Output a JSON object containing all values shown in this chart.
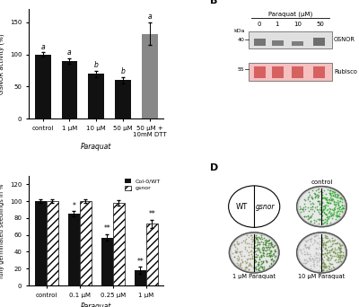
{
  "panel_A": {
    "categories": [
      "control",
      "1 μM",
      "10 μM",
      "50 μM",
      "50 μM +\n10mM DTT"
    ],
    "values": [
      100,
      90,
      70,
      60,
      132
    ],
    "errors": [
      3,
      4,
      5,
      5,
      18
    ],
    "bar_colors": [
      "#111111",
      "#111111",
      "#111111",
      "#111111",
      "#888888"
    ],
    "letters": [
      "a",
      "a",
      "b",
      "b",
      "a"
    ],
    "ylabel": "GSNOR activity (%)",
    "xlabel": "Paraquat",
    "ylim": [
      0,
      170
    ],
    "yticks": [
      0,
      50,
      100,
      150
    ]
  },
  "panel_C": {
    "categories": [
      "control",
      "0.1 μM",
      "0.25 μM",
      "1 μM"
    ],
    "col0_values": [
      100,
      85,
      57,
      18
    ],
    "gsnor_values": [
      100,
      100,
      98,
      73
    ],
    "col0_errors": [
      2,
      3,
      4,
      4
    ],
    "gsnor_errors": [
      2,
      2,
      3,
      5
    ],
    "col0_color": "#111111",
    "col0_label": "Col-0/WT",
    "gsnor_label": "gsnor",
    "ylabel": "fully germinated seedlings in %",
    "xlabel": "Paraquat",
    "ylim": [
      0,
      130
    ],
    "yticks": [
      0,
      20,
      40,
      60,
      80,
      100,
      120
    ],
    "col0_sig": [
      "",
      "*",
      "**",
      "**"
    ],
    "gsnor_sig": [
      "",
      "",
      "",
      "**"
    ]
  }
}
